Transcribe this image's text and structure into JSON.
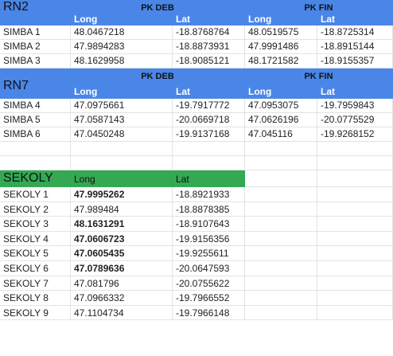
{
  "rn2": {
    "section_label": "RN2",
    "group_deb": "PK DEB",
    "group_fin": "PK FIN",
    "col_long": "Long",
    "col_lat": "Lat",
    "rows": [
      {
        "name": "SIMBA 1",
        "deb_long": "48.0467218",
        "deb_lat": "-18.8768764",
        "fin_long": "48.0519575",
        "fin_lat": "-18.8725314"
      },
      {
        "name": "SIMBA 2",
        "deb_long": "47.9894283",
        "deb_lat": "-18.8873931",
        "fin_long": "47.9991486",
        "fin_lat": "-18.8915144"
      },
      {
        "name": "SIMBA 3",
        "deb_long": "48.1629958",
        "deb_lat": "-18.9085121",
        "fin_long": "48.1721582",
        "fin_lat": "-18.9155357"
      }
    ]
  },
  "rn7": {
    "section_label": "RN7",
    "group_deb": "PK DEB",
    "group_fin": "PK FIN",
    "col_long": "Long",
    "col_lat": "Lat",
    "rows": [
      {
        "name": "SIMBA 4",
        "deb_long": "47.0975661",
        "deb_lat": "-19.7917772",
        "fin_long": "47.0953075",
        "fin_lat": "-19.7959843"
      },
      {
        "name": "SIMBA 5",
        "deb_long": "47.0587143",
        "deb_lat": "-20.0669718",
        "fin_long": "47.0626196",
        "fin_lat": "-20.0775529"
      },
      {
        "name": "SIMBA 6",
        "deb_long": "47.0450248",
        "deb_lat": "-19.9137168",
        "fin_long": "47.045116",
        "fin_lat": "-19.9268152"
      }
    ]
  },
  "sekoly": {
    "section_label": "SEKOLY",
    "col_long": "Long",
    "col_lat": "Lat",
    "rows": [
      {
        "name": "SEKOLY 1",
        "long": "47.9995262",
        "lat": "-18.8921933",
        "bold": true
      },
      {
        "name": "SEKOLY 2",
        "long": "47.989484",
        "lat": "-18.8878385",
        "bold": false
      },
      {
        "name": "SEKOLY 3",
        "long": "48.1631291",
        "lat": "-18.9107643",
        "bold": true
      },
      {
        "name": "SEKOLY 4",
        "long": "47.0606723",
        "lat": "-19.9156356",
        "bold": true
      },
      {
        "name": "SEKOLY 5",
        "long": "47.0605435",
        "lat": "-19.9255611",
        "bold": true
      },
      {
        "name": "SEKOLY 6",
        "long": "47.0789636",
        "lat": "-20.0647593",
        "bold": true
      },
      {
        "name": "SEKOLY 7",
        "long": "47.081796",
        "lat": "-20.0755622",
        "bold": false
      },
      {
        "name": "SEKOLY 8",
        "long": "47.0966332",
        "lat": "-19.7966552",
        "bold": false
      },
      {
        "name": "SEKOLY 9",
        "long": "47.1104734",
        "lat": "-19.7966148",
        "bold": false
      }
    ]
  },
  "colors": {
    "header_blue": "#4a86e8",
    "header_green": "#34a853",
    "grid": "#e2e3e3"
  }
}
